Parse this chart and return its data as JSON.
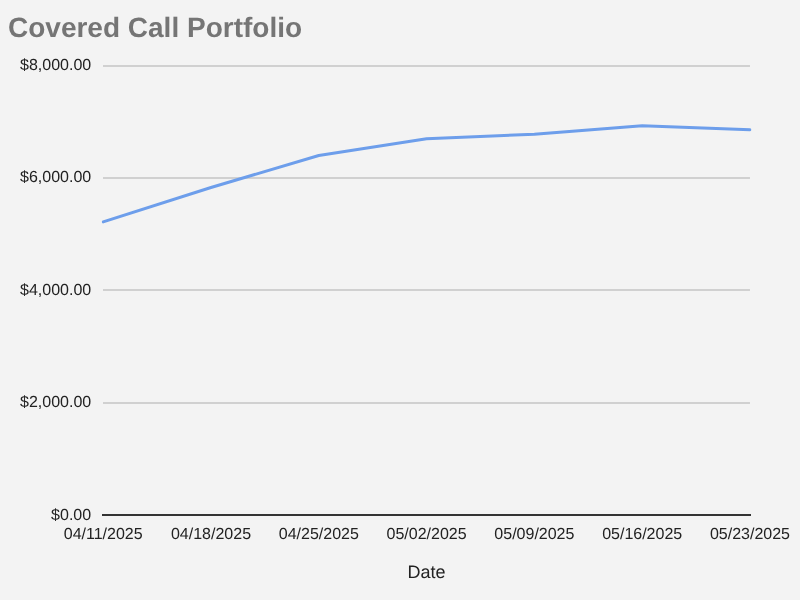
{
  "chart_data": {
    "type": "line",
    "title": "Covered Call Portfolio",
    "xlabel": "Date",
    "categories": [
      "04/11/2025",
      "04/18/2025",
      "04/25/2025",
      "05/02/2025",
      "05/09/2025",
      "05/16/2025",
      "05/23/2025"
    ],
    "series": [
      {
        "color": "#6d9eeb",
        "values": [
          5220,
          5830,
          6400,
          6700,
          6780,
          6930,
          6860
        ]
      }
    ],
    "ylim": [
      0,
      8000
    ],
    "yticks": [
      {
        "value": 0,
        "label": "$0.00"
      },
      {
        "value": 2000,
        "label": "$2,000.00"
      },
      {
        "value": 4000,
        "label": "$4,000.00"
      },
      {
        "value": 6000,
        "label": "$6,000.00"
      },
      {
        "value": 8000,
        "label": "$8,000.00"
      }
    ],
    "grid": "y",
    "legend": false,
    "marker": "none",
    "line_style": "solid"
  }
}
